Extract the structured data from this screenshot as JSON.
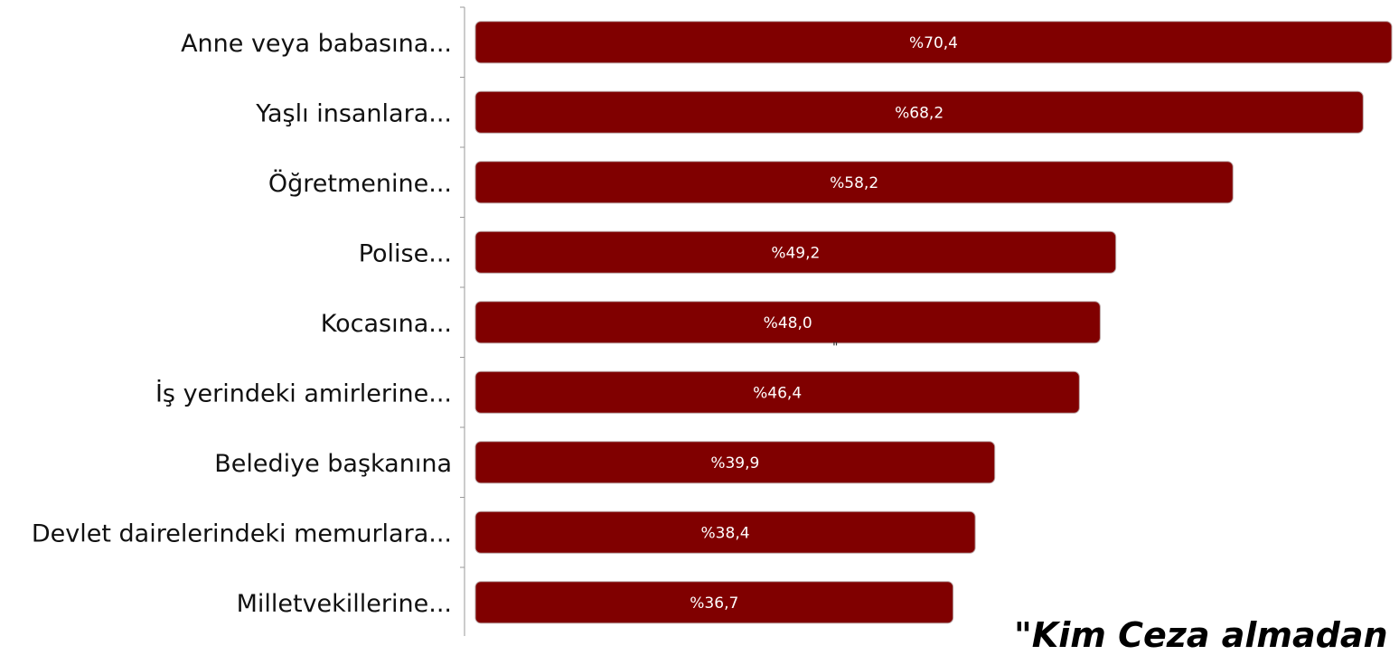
{
  "chart_data": {
    "type": "bar",
    "orientation": "horizontal",
    "categories": [
      "Anne veya babasına...",
      "Yaşlı insanlara...",
      "Öğretmenine...",
      "Polise...",
      "Kocasına...",
      "İş yerindeki amirlerine...",
      "Belediye başkanına",
      "Devlet dairelerindeki memurlara...",
      "Milletvekillerine..."
    ],
    "values": [
      70.4,
      68.2,
      58.2,
      49.2,
      48.0,
      46.4,
      39.9,
      38.4,
      36.7
    ],
    "value_labels": [
      "%70,4",
      "%68,2",
      "%58,2",
      "%49,2",
      "%48,0",
      "%46,4",
      "%39,9",
      "%38,4",
      "%36,7"
    ],
    "xlim": [
      0,
      70.4
    ],
    "grid": false,
    "legend": "none",
    "bar_color": "#800000",
    "label_color": "#ffffff"
  },
  "annotations": {
    "stray_mark": "\"",
    "footer_quote": "\"Kim Ceza almadan İ"
  }
}
